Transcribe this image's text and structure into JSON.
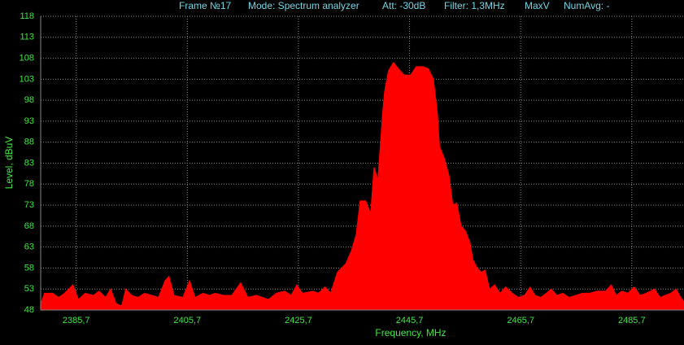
{
  "chart_data": {
    "type": "area",
    "header_items": [
      "Frame №17",
      "Mode: Spectrum analyzer",
      "Att: -30dB",
      "Filter: 1,3MHz",
      "MaxV",
      "NumAvg: -"
    ],
    "x_label": "Frequency, MHz",
    "y_label": "Level, dBuV",
    "color": "#ff0000",
    "grid": true,
    "xlim": [
      2379.3,
      2495.1
    ],
    "ylim": [
      48,
      118
    ],
    "xticks": [
      {
        "value": 2385.7,
        "label": "2385,7"
      },
      {
        "value": 2405.7,
        "label": "2405,7"
      },
      {
        "value": 2425.7,
        "label": "2425,7"
      },
      {
        "value": 2445.7,
        "label": "2445,7"
      },
      {
        "value": 2465.7,
        "label": "2465,7"
      },
      {
        "value": 2485.7,
        "label": "2485,7"
      }
    ],
    "yticks": [
      48,
      53,
      58,
      63,
      68,
      73,
      78,
      83,
      88,
      93,
      98,
      103,
      108,
      113,
      118
    ],
    "x": [
      2379.3,
      2380.0,
      2381.5,
      2382.5,
      2383.6,
      2385.1,
      2386.1,
      2387.3,
      2388.8,
      2389.8,
      2391.0,
      2391.9,
      2392.9,
      2393.9,
      2394.6,
      2395.7,
      2396.8,
      2398.0,
      2399.3,
      2400.5,
      2401.7,
      2402.4,
      2403.3,
      2404.9,
      2406.1,
      2407.1,
      2408.5,
      2409.7,
      2410.7,
      2412.2,
      2413.7,
      2415.3,
      2416.6,
      2418.1,
      2419.2,
      2420.3,
      2421.7,
      2423.2,
      2424.4,
      2425.4,
      2426.4,
      2428.3,
      2429.3,
      2430.5,
      2431.5,
      2432.7,
      2434.2,
      2435.2,
      2436.1,
      2436.8,
      2437.8,
      2438.7,
      2439.3,
      2440.0,
      2440.8,
      2441.2,
      2441.9,
      2442.8,
      2443.7,
      2444.7,
      2445.9,
      2446.9,
      2448.1,
      2449.1,
      2450.0,
      2450.7,
      2451.1,
      2452.0,
      2452.8,
      2453.5,
      2454.2,
      2455.0,
      2455.7,
      2456.6,
      2457.1,
      2457.9,
      2458.6,
      2459.3,
      2460.1,
      2461.0,
      2462.0,
      2463.0,
      2464.2,
      2465.3,
      2466.4,
      2467.4,
      2468.3,
      2469.3,
      2470.3,
      2471.2,
      2472.2,
      2473.3,
      2474.4,
      2475.6,
      2476.8,
      2478.1,
      2479.5,
      2481.0,
      2482.0,
      2482.9,
      2483.9,
      2485.0,
      2486.1,
      2487.2,
      2488.3,
      2489.8,
      2490.8,
      2491.7,
      2492.7,
      2493.7,
      2494.5,
      2495.1
    ],
    "values": [
      49.5,
      52,
      52,
      51,
      52,
      54,
      50.5,
      52,
      51.5,
      52.5,
      51,
      53,
      49.5,
      49,
      53,
      51.5,
      51,
      52,
      51.5,
      51,
      55,
      56,
      51.5,
      51,
      55,
      51,
      52,
      51.5,
      52,
      51.5,
      51.5,
      54.5,
      51,
      51.5,
      51,
      50.5,
      52,
      52.5,
      51.5,
      54,
      52,
      52.5,
      52,
      53.5,
      52,
      57,
      59,
      62,
      66,
      74,
      74,
      71,
      82,
      79,
      94,
      100,
      105,
      107,
      105.5,
      104,
      104,
      106,
      106,
      105.5,
      103,
      95,
      87,
      84,
      80,
      73,
      73.5,
      68,
      67,
      64,
      60,
      58,
      57,
      57.5,
      53,
      54,
      52,
      53.5,
      52,
      51,
      51.5,
      53.5,
      51.5,
      51,
      52,
      53,
      51.5,
      52,
      51,
      51.5,
      52,
      52,
      52.5,
      52.5,
      54,
      51.5,
      52.5,
      52,
      53.5,
      51.5,
      52,
      53,
      51,
      51.5,
      52,
      53,
      51,
      50
    ]
  }
}
